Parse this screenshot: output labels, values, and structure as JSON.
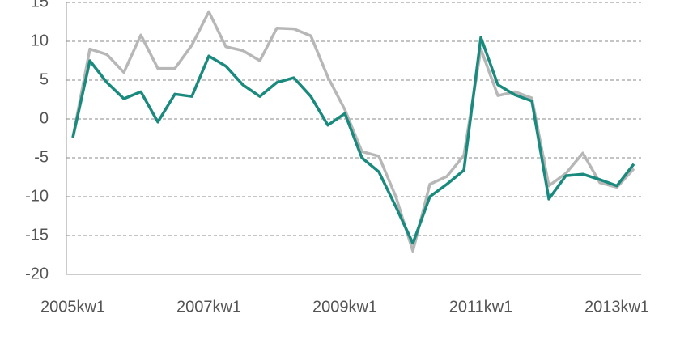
{
  "chart_data": {
    "type": "line",
    "categories": [
      "2005kw1",
      null,
      null,
      null,
      null,
      null,
      null,
      null,
      "2007kw1",
      null,
      null,
      null,
      null,
      null,
      null,
      null,
      "2009kw1",
      null,
      null,
      null,
      null,
      null,
      null,
      null,
      "2011kw1",
      null,
      null,
      null,
      null,
      null,
      null,
      null,
      "2013kw1",
      null
    ],
    "series": [
      {
        "color": "#b7b7b7",
        "values": [
          -2.4,
          9,
          8.3,
          6,
          10.8,
          6.5,
          6.5,
          9.5,
          13.8,
          9.3,
          8.8,
          7.5,
          11.7,
          11.6,
          10.7,
          5.4,
          1.2,
          -4.2,
          -4.8,
          -10,
          -17,
          -8.4,
          -7.4,
          -4.7,
          9,
          3,
          3.5,
          2.7,
          -8.6,
          -7,
          -4.4,
          -8.2,
          -8.8,
          -6.4
        ]
      },
      {
        "color": "#1a8a7e",
        "values": [
          -2.4,
          7.5,
          4.7,
          2.6,
          3.5,
          -0.4,
          3.2,
          2.9,
          8.1,
          6.8,
          4.4,
          2.9,
          4.7,
          5.3,
          2.9,
          -0.8,
          0.7,
          -5,
          -6.8,
          -11.3,
          -16,
          -10,
          -8.4,
          -6.6,
          10.5,
          4.4,
          3.1,
          2.3,
          -10.3,
          -7.3,
          -7.1,
          -7.8,
          -8.6,
          -5.8
        ]
      }
    ],
    "ylim": [
      -20,
      15
    ],
    "yticks": [
      -20,
      -15,
      -10,
      -5,
      0,
      5,
      10,
      15
    ],
    "grid": true
  }
}
